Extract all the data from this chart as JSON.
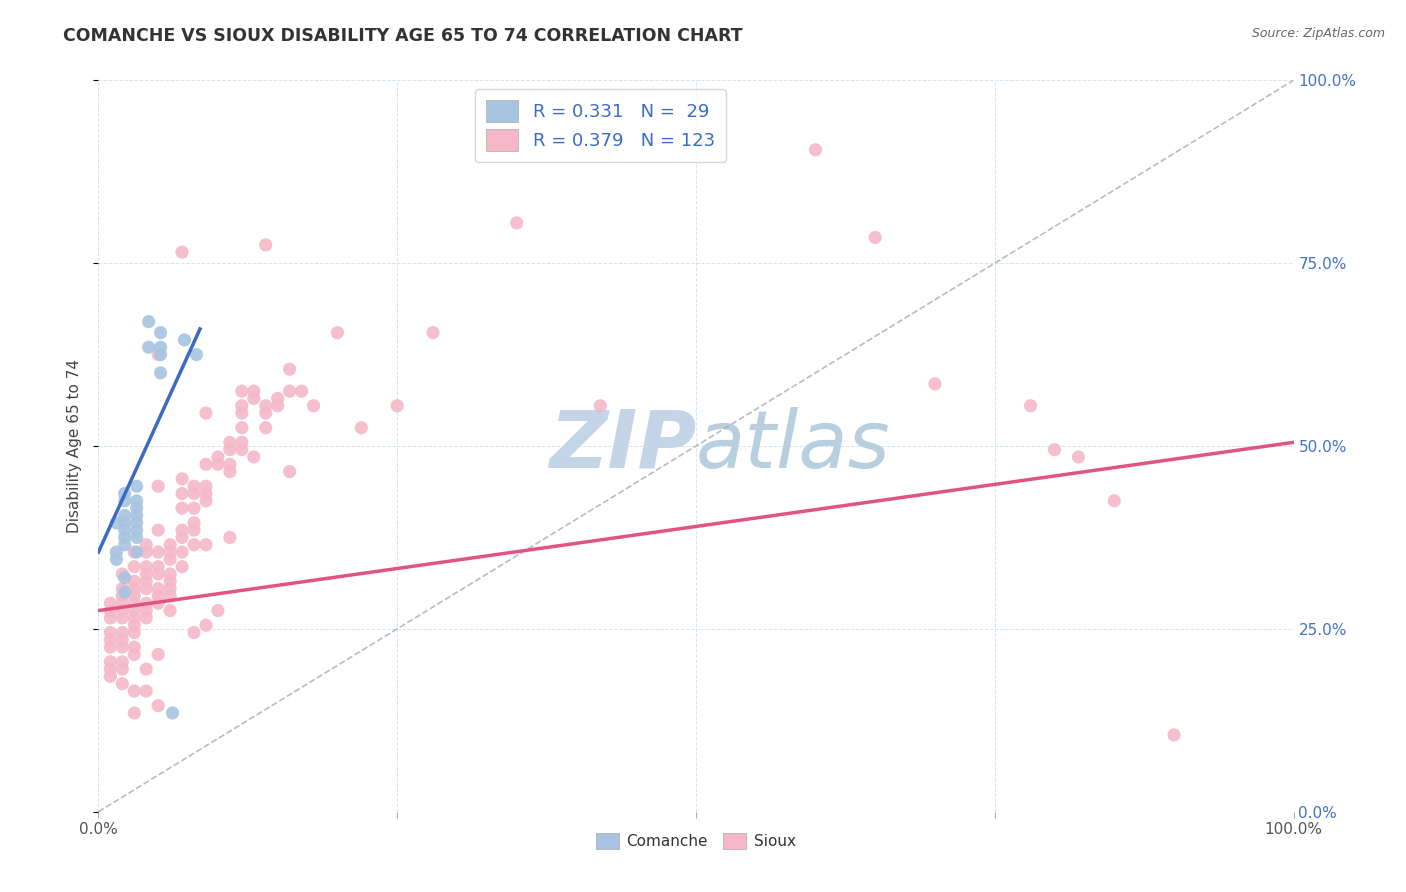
{
  "title": "COMANCHE VS SIOUX DISABILITY AGE 65 TO 74 CORRELATION CHART",
  "source": "Source: ZipAtlas.com",
  "ylabel": "Disability Age 65 to 74",
  "comanche_R": 0.331,
  "comanche_N": 29,
  "sioux_R": 0.379,
  "sioux_N": 123,
  "comanche_color": "#a8c4e0",
  "sioux_color": "#f4b8c8",
  "comanche_line_color": "#3a6cc4",
  "sioux_line_color": "#e05580",
  "diagonal_color": "#aaaaaa",
  "watermark_text": "ZIPatlas",
  "watermark_color": "#ccdcee",
  "legend_text_color": "#3a6cc4",
  "title_color": "#333333",
  "source_color": "#666666",
  "grid_color": "#ccddee",
  "right_tick_color": "#4472c4",
  "xlim": [
    0.0,
    1.0
  ],
  "ylim": [
    0.0,
    1.0
  ],
  "comanche_line_x0": 0.0,
  "comanche_line_y0": 0.355,
  "comanche_line_x1": 0.085,
  "comanche_line_y1": 0.66,
  "sioux_line_x0": 0.0,
  "sioux_line_y0": 0.275,
  "sioux_line_x1": 1.0,
  "sioux_line_y1": 0.505,
  "comanche_points": [
    [
      0.015,
      0.395
    ],
    [
      0.015,
      0.345
    ],
    [
      0.015,
      0.355
    ],
    [
      0.022,
      0.435
    ],
    [
      0.022,
      0.425
    ],
    [
      0.022,
      0.405
    ],
    [
      0.022,
      0.395
    ],
    [
      0.022,
      0.385
    ],
    [
      0.022,
      0.375
    ],
    [
      0.022,
      0.365
    ],
    [
      0.022,
      0.32
    ],
    [
      0.022,
      0.3
    ],
    [
      0.032,
      0.445
    ],
    [
      0.032,
      0.425
    ],
    [
      0.032,
      0.415
    ],
    [
      0.032,
      0.405
    ],
    [
      0.032,
      0.395
    ],
    [
      0.032,
      0.385
    ],
    [
      0.032,
      0.375
    ],
    [
      0.032,
      0.355
    ],
    [
      0.042,
      0.67
    ],
    [
      0.042,
      0.635
    ],
    [
      0.052,
      0.655
    ],
    [
      0.052,
      0.635
    ],
    [
      0.052,
      0.625
    ],
    [
      0.052,
      0.6
    ],
    [
      0.062,
      0.135
    ],
    [
      0.072,
      0.645
    ],
    [
      0.082,
      0.625
    ]
  ],
  "sioux_points": [
    [
      0.01,
      0.285
    ],
    [
      0.01,
      0.275
    ],
    [
      0.01,
      0.265
    ],
    [
      0.01,
      0.245
    ],
    [
      0.01,
      0.235
    ],
    [
      0.01,
      0.225
    ],
    [
      0.01,
      0.205
    ],
    [
      0.01,
      0.195
    ],
    [
      0.01,
      0.185
    ],
    [
      0.02,
      0.325
    ],
    [
      0.02,
      0.305
    ],
    [
      0.02,
      0.295
    ],
    [
      0.02,
      0.285
    ],
    [
      0.02,
      0.275
    ],
    [
      0.02,
      0.265
    ],
    [
      0.02,
      0.245
    ],
    [
      0.02,
      0.235
    ],
    [
      0.02,
      0.225
    ],
    [
      0.02,
      0.205
    ],
    [
      0.02,
      0.195
    ],
    [
      0.02,
      0.175
    ],
    [
      0.03,
      0.355
    ],
    [
      0.03,
      0.335
    ],
    [
      0.03,
      0.315
    ],
    [
      0.03,
      0.305
    ],
    [
      0.03,
      0.295
    ],
    [
      0.03,
      0.285
    ],
    [
      0.03,
      0.275
    ],
    [
      0.03,
      0.265
    ],
    [
      0.03,
      0.255
    ],
    [
      0.03,
      0.245
    ],
    [
      0.03,
      0.225
    ],
    [
      0.03,
      0.215
    ],
    [
      0.03,
      0.165
    ],
    [
      0.03,
      0.135
    ],
    [
      0.04,
      0.365
    ],
    [
      0.04,
      0.355
    ],
    [
      0.04,
      0.335
    ],
    [
      0.04,
      0.325
    ],
    [
      0.04,
      0.315
    ],
    [
      0.04,
      0.305
    ],
    [
      0.04,
      0.285
    ],
    [
      0.04,
      0.275
    ],
    [
      0.04,
      0.265
    ],
    [
      0.04,
      0.195
    ],
    [
      0.04,
      0.165
    ],
    [
      0.05,
      0.625
    ],
    [
      0.05,
      0.445
    ],
    [
      0.05,
      0.385
    ],
    [
      0.05,
      0.355
    ],
    [
      0.05,
      0.335
    ],
    [
      0.05,
      0.325
    ],
    [
      0.05,
      0.305
    ],
    [
      0.05,
      0.295
    ],
    [
      0.05,
      0.285
    ],
    [
      0.05,
      0.215
    ],
    [
      0.05,
      0.145
    ],
    [
      0.06,
      0.365
    ],
    [
      0.06,
      0.355
    ],
    [
      0.06,
      0.345
    ],
    [
      0.06,
      0.325
    ],
    [
      0.06,
      0.315
    ],
    [
      0.06,
      0.305
    ],
    [
      0.06,
      0.295
    ],
    [
      0.06,
      0.275
    ],
    [
      0.07,
      0.765
    ],
    [
      0.07,
      0.455
    ],
    [
      0.07,
      0.435
    ],
    [
      0.07,
      0.415
    ],
    [
      0.07,
      0.385
    ],
    [
      0.07,
      0.375
    ],
    [
      0.07,
      0.355
    ],
    [
      0.07,
      0.335
    ],
    [
      0.08,
      0.445
    ],
    [
      0.08,
      0.435
    ],
    [
      0.08,
      0.415
    ],
    [
      0.08,
      0.395
    ],
    [
      0.08,
      0.385
    ],
    [
      0.08,
      0.365
    ],
    [
      0.08,
      0.245
    ],
    [
      0.09,
      0.545
    ],
    [
      0.09,
      0.475
    ],
    [
      0.09,
      0.445
    ],
    [
      0.09,
      0.435
    ],
    [
      0.09,
      0.425
    ],
    [
      0.09,
      0.365
    ],
    [
      0.09,
      0.255
    ],
    [
      0.1,
      0.485
    ],
    [
      0.1,
      0.475
    ],
    [
      0.1,
      0.275
    ],
    [
      0.11,
      0.505
    ],
    [
      0.11,
      0.495
    ],
    [
      0.11,
      0.475
    ],
    [
      0.11,
      0.465
    ],
    [
      0.11,
      0.375
    ],
    [
      0.12,
      0.575
    ],
    [
      0.12,
      0.555
    ],
    [
      0.12,
      0.545
    ],
    [
      0.12,
      0.525
    ],
    [
      0.12,
      0.505
    ],
    [
      0.12,
      0.495
    ],
    [
      0.13,
      0.575
    ],
    [
      0.13,
      0.565
    ],
    [
      0.13,
      0.485
    ],
    [
      0.14,
      0.775
    ],
    [
      0.14,
      0.555
    ],
    [
      0.14,
      0.545
    ],
    [
      0.14,
      0.525
    ],
    [
      0.15,
      0.565
    ],
    [
      0.15,
      0.555
    ],
    [
      0.16,
      0.605
    ],
    [
      0.16,
      0.575
    ],
    [
      0.16,
      0.465
    ],
    [
      0.17,
      0.575
    ],
    [
      0.18,
      0.555
    ],
    [
      0.2,
      0.655
    ],
    [
      0.22,
      0.525
    ],
    [
      0.25,
      0.555
    ],
    [
      0.28,
      0.655
    ],
    [
      0.35,
      0.805
    ],
    [
      0.42,
      0.555
    ],
    [
      0.6,
      0.905
    ],
    [
      0.65,
      0.785
    ],
    [
      0.7,
      0.585
    ],
    [
      0.78,
      0.555
    ],
    [
      0.8,
      0.495
    ],
    [
      0.82,
      0.485
    ],
    [
      0.85,
      0.425
    ],
    [
      0.9,
      0.105
    ]
  ]
}
